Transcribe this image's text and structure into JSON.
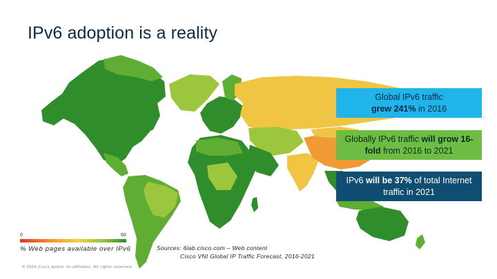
{
  "slide": {
    "title": "IPv6 adoption is a reality"
  },
  "callouts": [
    {
      "pre": "Global IPv6 traffic",
      "bold": "grew 241%",
      "post": " in 2016"
    },
    {
      "pre": "Globally IPv6 traffic ",
      "bold": "will grow 16-fold",
      "post": " from 2016 to 2021"
    },
    {
      "pre": "IPv6 ",
      "bold": "will be 37%",
      "post": "  of total Internet traffic in 2021"
    }
  ],
  "legend": {
    "min": "0",
    "max": "60",
    "label": "% Web pages available over IPv6",
    "colors": [
      "#e3342a",
      "#f1992c",
      "#f3d142",
      "#8cc13f",
      "#2f8d2b"
    ]
  },
  "sources": {
    "line1": "Sources: 6lab.cisco.com – Web content",
    "line2": "Cisco VNI Global IP Traffic Forecast, 2016-2021"
  },
  "footer": {
    "copyright": "© 2016  Cisco and/or its affiliates. All rights reserved."
  },
  "map": {
    "colors": {
      "high": "#2f8d2b",
      "mid_high": "#5fae33",
      "mid": "#9cc63d",
      "low_mid": "#f0c543",
      "low": "#f09a35",
      "very_low": "#e86a2c",
      "ocean": "#ffffff"
    }
  }
}
